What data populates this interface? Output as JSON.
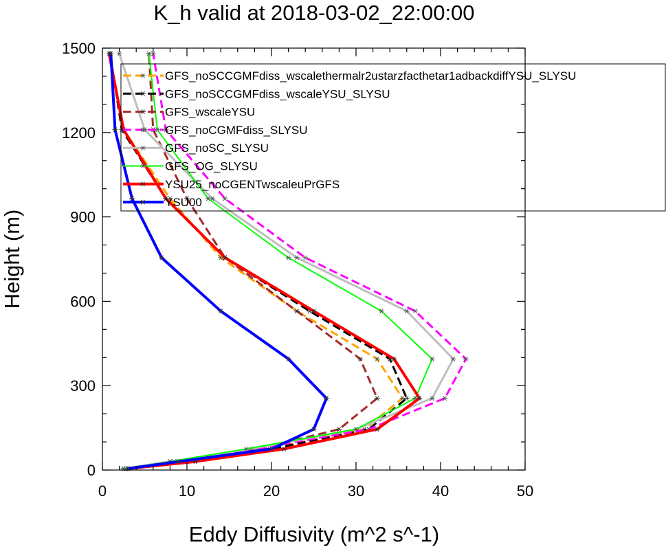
{
  "chart_data": {
    "type": "line",
    "title": "K_h valid at 2018-03-02_22:00:00",
    "xlabel": "Eddy Diffusivity (m^2 s^-1)",
    "ylabel": "Height (m)",
    "xlim": [
      0,
      50
    ],
    "ylim": [
      0,
      1500
    ],
    "xticks": [
      0,
      10,
      20,
      30,
      40,
      50
    ],
    "yticks": [
      0,
      300,
      600,
      900,
      1200,
      1500
    ],
    "xtick_labels": [
      "0",
      "10",
      "20",
      "30",
      "40",
      "50"
    ],
    "ytick_labels": [
      "0",
      "300",
      "600",
      "900",
      "1200",
      "1500"
    ],
    "heights": [
      5,
      30,
      75,
      145,
      255,
      395,
      565,
      755,
      965,
      1210,
      1480
    ],
    "legend_position": "top-right",
    "grid": false,
    "series": [
      {
        "name": "GFS_noSCCGMFdiss_wscalethermalr2ustarzfacthetar1adbackdiffYSU_SLYSU",
        "color": "#ffa500",
        "dash": "dashed",
        "width": 3,
        "values": [
          2.8,
          9.0,
          19.5,
          31.0,
          35.5,
          32.5,
          23.0,
          14.0,
          8.0,
          2.5,
          0.8
        ]
      },
      {
        "name": "GFS_noSCCGMFdiss_wscaleYSU_SLYSU",
        "color": "#000000",
        "dash": "dashed",
        "width": 3,
        "values": [
          2.8,
          9.5,
          20.0,
          31.5,
          36.0,
          34.0,
          24.5,
          14.5,
          7.5,
          2.3,
          0.9
        ]
      },
      {
        "name": "GFS_wscaleYSU",
        "color": "#a52a2a",
        "dash": "dashed",
        "width": 3,
        "values": [
          2.5,
          8.5,
          18.5,
          28.0,
          32.5,
          30.5,
          23.0,
          14.5,
          10.0,
          6.0,
          5.5
        ]
      },
      {
        "name": "GFS_noCGMFdiss_SLYSU",
        "color": "#ff00ff",
        "dash": "dashed",
        "width": 3,
        "values": [
          2.5,
          8.0,
          18.0,
          31.5,
          40.5,
          43.0,
          37.0,
          24.0,
          14.5,
          7.5,
          6.0
        ]
      },
      {
        "name": "GFS_noSC_SLYSU",
        "color": "#bebebe",
        "dash": "solid",
        "width": 3,
        "values": [
          2.5,
          8.0,
          17.5,
          30.0,
          39.0,
          41.5,
          36.0,
          23.0,
          13.0,
          5.0,
          2.0
        ]
      },
      {
        "name": "GFS_OG_SLYSU",
        "color": "#00ff00",
        "dash": "solid",
        "width": 2,
        "values": [
          2.5,
          8.0,
          17.0,
          30.0,
          37.0,
          39.0,
          33.0,
          22.0,
          12.5,
          6.5,
          5.5
        ]
      },
      {
        "name": "YSU25_noCGENTwscaleuPrGFS",
        "color": "#ff0000",
        "dash": "solid",
        "width": 4,
        "values": [
          3.0,
          11.0,
          21.5,
          32.5,
          37.5,
          34.5,
          25.0,
          14.5,
          7.5,
          2.5,
          0.8
        ]
      },
      {
        "name": "YSU00",
        "color": "#0000ff",
        "dash": "solid",
        "width": 4,
        "values": [
          3.0,
          9.0,
          20.0,
          25.0,
          26.5,
          22.0,
          14.0,
          7.0,
          3.5,
          1.5,
          1.0
        ]
      }
    ]
  }
}
